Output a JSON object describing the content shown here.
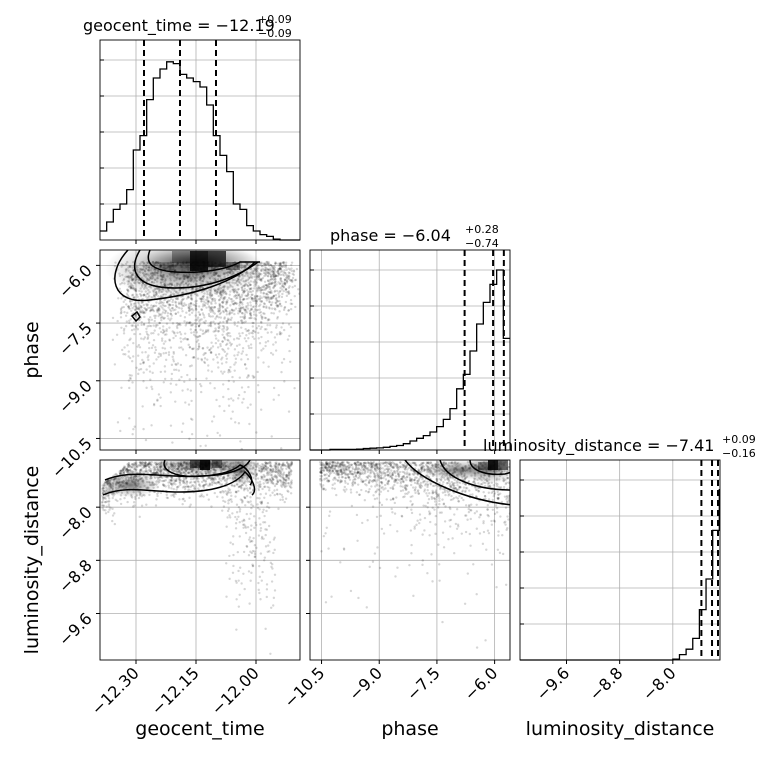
{
  "chart_data": {
    "type": "corner",
    "parameters": [
      {
        "name": "geocent_time",
        "label": "geocent_time",
        "title": {
          "prefix": "geocent_time = ",
          "value": "−12.19",
          "plus": "+0.09",
          "minus": "−0.09"
        },
        "range": [
          -12.39,
          -11.89
        ],
        "ticks": [
          {
            "value": -12.3,
            "label": "−12.30"
          },
          {
            "value": -12.15,
            "label": "−12.15"
          },
          {
            "value": -12.0,
            "label": "−12.00"
          }
        ],
        "quantiles": [
          -12.28,
          -12.19,
          -12.1
        ]
      },
      {
        "name": "phase",
        "label": "phase",
        "title": {
          "prefix": "phase = ",
          "value": "−6.04",
          "plus": "+0.28",
          "minus": "−0.74"
        },
        "range": [
          -10.8,
          -5.6
        ],
        "ticks": [
          {
            "value": -10.5,
            "label": "−10.5"
          },
          {
            "value": -9.0,
            "label": "−9.0"
          },
          {
            "value": -7.5,
            "label": "−7.5"
          },
          {
            "value": -6.0,
            "label": "−6.0"
          }
        ],
        "quantiles": [
          -6.78,
          -6.04,
          -5.76
        ]
      },
      {
        "name": "luminosity_distance",
        "label": "luminosity_distance",
        "title": {
          "prefix": "luminosity_distance = ",
          "value": "−7.41",
          "plus": "+0.09",
          "minus": "−0.16"
        },
        "range": [
          -10.3,
          -7.29
        ],
        "ticks": [
          {
            "value": -9.6,
            "label": "−9.6"
          },
          {
            "value": -8.8,
            "label": "−8.8"
          },
          {
            "value": -8.0,
            "label": "−8.0"
          }
        ],
        "quantiles": [
          -7.57,
          -7.41,
          -7.32
        ]
      }
    ],
    "histograms": [
      {
        "bin_edges": [
          -12.39,
          -12.3733,
          -12.3567,
          -12.34,
          -12.3233,
          -12.3067,
          -12.29,
          -12.2733,
          -12.2567,
          -12.24,
          -12.2233,
          -12.2067,
          -12.19,
          -12.1733,
          -12.1567,
          -12.14,
          -12.1233,
          -12.1067,
          -12.09,
          -12.0733,
          -12.0567,
          -12.04,
          -12.0233,
          -12.0067,
          -11.99,
          -11.9733,
          -11.9567,
          -11.94,
          -11.9233,
          -11.9067,
          -11.89
        ],
        "counts": [
          0.05,
          0.1,
          0.17,
          0.2,
          0.28,
          0.5,
          0.58,
          0.78,
          0.9,
          0.95,
          0.99,
          0.98,
          0.92,
          0.9,
          0.88,
          0.85,
          0.75,
          0.58,
          0.47,
          0.38,
          0.2,
          0.17,
          0.08,
          0.05,
          0.03,
          0.02,
          0.005,
          0,
          0,
          0
        ]
      },
      {
        "bin_edges": [
          -10.8,
          -10.6267,
          -10.4533,
          -10.28,
          -10.1067,
          -9.9333,
          -9.76,
          -9.5867,
          -9.4133,
          -9.24,
          -9.0667,
          -8.8933,
          -8.72,
          -8.5467,
          -8.3733,
          -8.2,
          -8.0267,
          -7.8533,
          -7.68,
          -7.5067,
          -7.3333,
          -7.16,
          -6.9867,
          -6.8133,
          -6.64,
          -6.4667,
          -6.2933,
          -6.12,
          -5.9467,
          -5.7733,
          -5.6
        ],
        "counts": [
          0,
          0,
          0,
          0.003,
          0.003,
          0.003,
          0.003,
          0.005,
          0.008,
          0.01,
          0.012,
          0.015,
          0.02,
          0.025,
          0.035,
          0.05,
          0.065,
          0.08,
          0.1,
          0.13,
          0.17,
          0.23,
          0.34,
          0.42,
          0.55,
          0.7,
          0.82,
          0.92,
          1.0,
          0.62
        ]
      },
      {
        "bin_edges": [
          -10.3,
          -10.2,
          -10.1,
          -10.0,
          -9.9,
          -9.8,
          -9.7,
          -9.6,
          -9.5,
          -9.4,
          -9.3,
          -9.2,
          -9.1,
          -9.0,
          -8.9,
          -8.8,
          -8.7,
          -8.6,
          -8.5,
          -8.4,
          -8.3,
          -8.2,
          -8.1,
          -8.0,
          -7.9,
          -7.8,
          -7.7,
          -7.6,
          -7.5,
          -7.4,
          -7.3
        ],
        "counts": [
          0,
          0,
          0,
          0,
          0,
          0,
          0,
          0,
          0,
          0,
          0,
          0,
          0,
          0,
          0,
          0,
          0,
          0,
          0,
          0,
          0,
          0,
          0,
          0.005,
          0.03,
          0.06,
          0.12,
          0.28,
          0.45,
          0.72,
          0.95
        ]
      }
    ],
    "show_grid": true,
    "contour_levels": 3,
    "data_points": "scattered posterior samples (grey)"
  }
}
